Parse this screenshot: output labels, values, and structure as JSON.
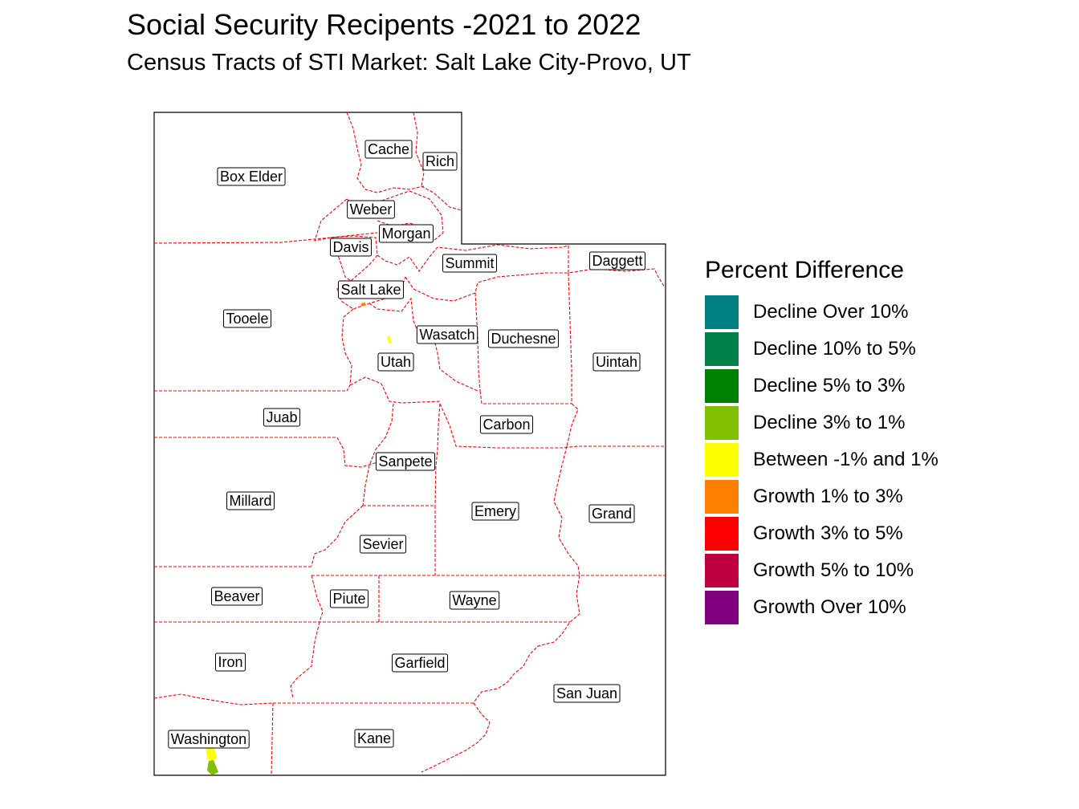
{
  "title": "Social Security Recipents -2021 to 2022",
  "subtitle": "Census Tracts of STI Market: Salt Lake City-Provo, UT",
  "legend": {
    "title": "Percent Difference",
    "items": [
      {
        "label": "Decline Over 10%",
        "color": "#008080"
      },
      {
        "label": "Decline 10% to 5%",
        "color": "#00804A"
      },
      {
        "label": "Decline 5% to 3%",
        "color": "#008000"
      },
      {
        "label": "Decline 3% to 1%",
        "color": "#80C000"
      },
      {
        "label": "Between -1% and 1%",
        "color": "#FFFF00"
      },
      {
        "label": "Growth 1% to 3%",
        "color": "#FF8000"
      },
      {
        "label": "Growth 3% to 5%",
        "color": "#FF0000"
      },
      {
        "label": "Growth 5% to 10%",
        "color": "#C00040"
      },
      {
        "label": "Growth Over 10%",
        "color": "#800080"
      }
    ]
  },
  "counties": [
    "Cache",
    "Rich",
    "Box Elder",
    "Weber",
    "Morgan",
    "Davis",
    "Summit",
    "Daggett",
    "Salt Lake",
    "Tooele",
    "Wasatch",
    "Duchesne",
    "Utah",
    "Uintah",
    "Juab",
    "Carbon",
    "Sanpete",
    "Millard",
    "Emery",
    "Grand",
    "Sevier",
    "Beaver",
    "Piute",
    "Wayne",
    "Iron",
    "Garfield",
    "San Juan",
    "Washington",
    "Kane"
  ],
  "colors": {
    "boundary": "#FF0000",
    "outline": "#000000"
  }
}
